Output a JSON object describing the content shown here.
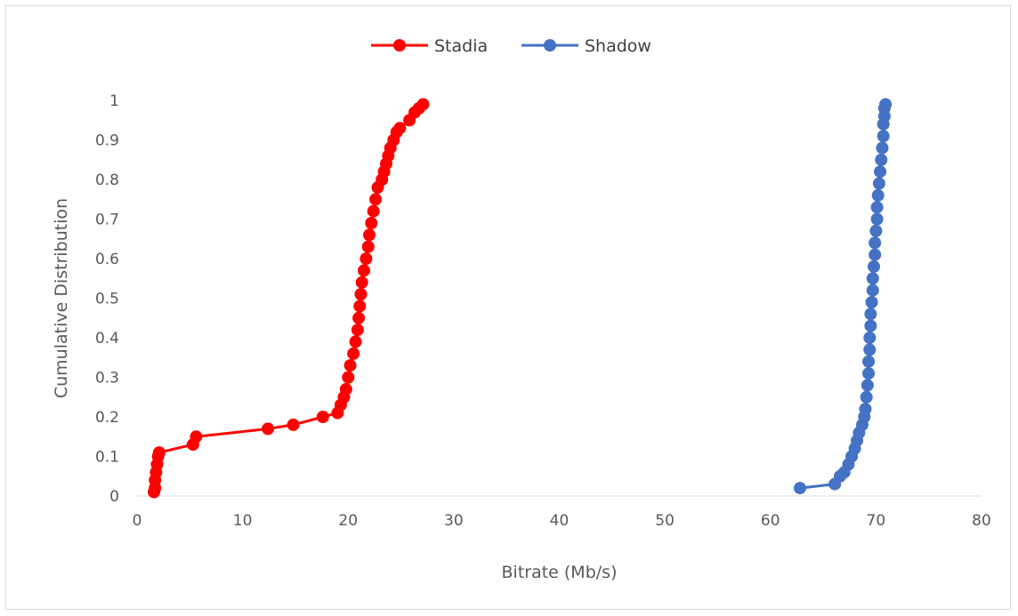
{
  "chart_data": {
    "type": "line",
    "title": "",
    "xlabel": "Bitrate (Mb/s)",
    "ylabel": "Cumulative Distribution",
    "xlim": [
      0,
      80
    ],
    "ylim": [
      0,
      1
    ],
    "xticks": [
      0,
      10,
      20,
      30,
      40,
      50,
      60,
      70,
      80
    ],
    "yticks": [
      0,
      0.1,
      0.2,
      0.3,
      0.4,
      0.5,
      0.6,
      0.7,
      0.8,
      0.9,
      1
    ],
    "ytick_labels": [
      "0",
      "0.1",
      "0.2",
      "0.3",
      "0.4",
      "0.5",
      "0.6",
      "0.7",
      "0.8",
      "0.9",
      "1"
    ],
    "grid": false,
    "legend_position": "top",
    "series": [
      {
        "name": "Stadia",
        "color": "#ff0000",
        "points": [
          [
            1.6,
            0.01
          ],
          [
            1.7,
            0.02
          ],
          [
            1.7,
            0.04
          ],
          [
            1.8,
            0.06
          ],
          [
            1.9,
            0.08
          ],
          [
            2.0,
            0.1
          ],
          [
            2.1,
            0.11
          ],
          [
            5.3,
            0.13
          ],
          [
            5.6,
            0.15
          ],
          [
            12.4,
            0.17
          ],
          [
            14.8,
            0.18
          ],
          [
            17.6,
            0.2
          ],
          [
            19.0,
            0.21
          ],
          [
            19.3,
            0.23
          ],
          [
            19.6,
            0.25
          ],
          [
            19.8,
            0.27
          ],
          [
            20.0,
            0.3
          ],
          [
            20.2,
            0.33
          ],
          [
            20.5,
            0.36
          ],
          [
            20.7,
            0.39
          ],
          [
            20.9,
            0.42
          ],
          [
            21.0,
            0.45
          ],
          [
            21.1,
            0.48
          ],
          [
            21.2,
            0.51
          ],
          [
            21.3,
            0.54
          ],
          [
            21.5,
            0.57
          ],
          [
            21.7,
            0.6
          ],
          [
            21.9,
            0.63
          ],
          [
            22.0,
            0.66
          ],
          [
            22.2,
            0.69
          ],
          [
            22.4,
            0.72
          ],
          [
            22.6,
            0.75
          ],
          [
            22.8,
            0.78
          ],
          [
            23.2,
            0.8
          ],
          [
            23.4,
            0.82
          ],
          [
            23.6,
            0.84
          ],
          [
            23.8,
            0.86
          ],
          [
            24.0,
            0.88
          ],
          [
            24.3,
            0.9
          ],
          [
            24.6,
            0.92
          ],
          [
            24.9,
            0.93
          ],
          [
            25.8,
            0.95
          ],
          [
            26.3,
            0.97
          ],
          [
            26.7,
            0.98
          ],
          [
            27.1,
            0.99
          ]
        ]
      },
      {
        "name": "Shadow",
        "color": "#4472c4",
        "points": [
          [
            62.8,
            0.02
          ],
          [
            66.1,
            0.03
          ],
          [
            66.6,
            0.05
          ],
          [
            67.0,
            0.06
          ],
          [
            67.4,
            0.08
          ],
          [
            67.7,
            0.1
          ],
          [
            68.0,
            0.12
          ],
          [
            68.2,
            0.14
          ],
          [
            68.4,
            0.16
          ],
          [
            68.7,
            0.18
          ],
          [
            68.9,
            0.2
          ],
          [
            69.0,
            0.22
          ],
          [
            69.1,
            0.25
          ],
          [
            69.2,
            0.28
          ],
          [
            69.3,
            0.31
          ],
          [
            69.3,
            0.34
          ],
          [
            69.4,
            0.37
          ],
          [
            69.4,
            0.4
          ],
          [
            69.5,
            0.43
          ],
          [
            69.5,
            0.46
          ],
          [
            69.6,
            0.49
          ],
          [
            69.7,
            0.52
          ],
          [
            69.7,
            0.55
          ],
          [
            69.8,
            0.58
          ],
          [
            69.9,
            0.61
          ],
          [
            69.9,
            0.64
          ],
          [
            70.0,
            0.67
          ],
          [
            70.1,
            0.7
          ],
          [
            70.1,
            0.73
          ],
          [
            70.2,
            0.76
          ],
          [
            70.3,
            0.79
          ],
          [
            70.4,
            0.82
          ],
          [
            70.5,
            0.85
          ],
          [
            70.6,
            0.88
          ],
          [
            70.7,
            0.91
          ],
          [
            70.7,
            0.94
          ],
          [
            70.8,
            0.96
          ],
          [
            70.8,
            0.98
          ],
          [
            70.9,
            0.99
          ]
        ]
      }
    ]
  }
}
